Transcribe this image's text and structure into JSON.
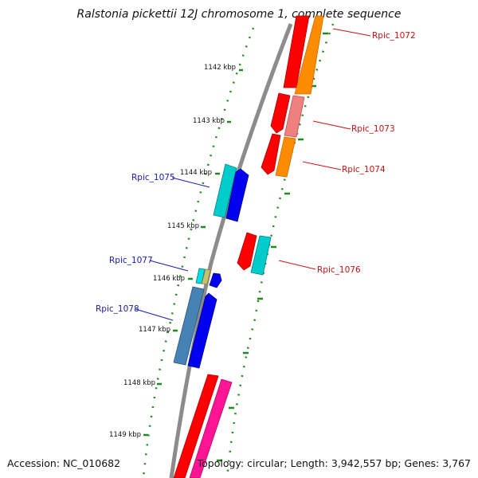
{
  "title": "Ralstonia pickettii 12J chromosome 1, complete sequence",
  "footer": {
    "accession": "Accession: NC_010682",
    "summary": "Topology: circular; Length: 3,942,557 bp; Genes: 3,767"
  },
  "colors": {
    "backbone": "#8c8c8c",
    "tick": "#1f8a1f",
    "label_forward": "#cc1111",
    "label_reverse": "#1b1bb0"
  },
  "ticks": [
    {
      "label": "1142 kbp"
    },
    {
      "label": "1143 kbp"
    },
    {
      "label": "1144 kbp"
    },
    {
      "label": "1145 kbp"
    },
    {
      "label": "1146 kbp"
    },
    {
      "label": "1147 kbp"
    },
    {
      "label": "1148 kbp"
    },
    {
      "label": "1149 kbp"
    }
  ],
  "gene_labels": [
    {
      "text": "Rpic_1072"
    },
    {
      "text": "Rpic_1073"
    },
    {
      "text": "Rpic_1074"
    },
    {
      "text": "Rpic_1075"
    },
    {
      "text": "Rpic_1076"
    },
    {
      "text": "Rpic_1077"
    },
    {
      "text": "Rpic_1078"
    }
  ]
}
